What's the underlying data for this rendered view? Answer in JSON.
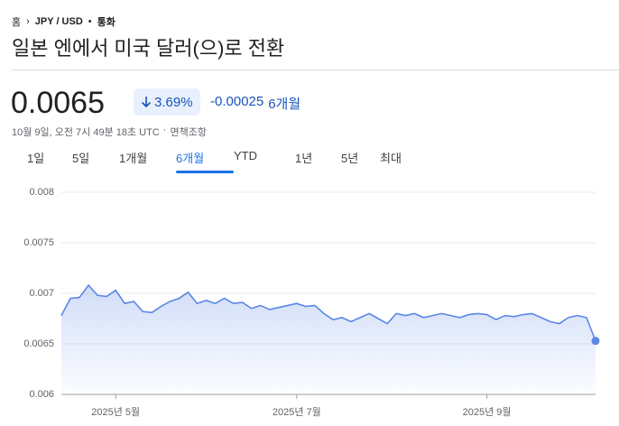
{
  "breadcrumb": {
    "home": "홈",
    "pair": "JPY / USD",
    "kind": "통화"
  },
  "title": "일본 엔에서 미국 달러(으)로 전환",
  "quote": {
    "price": "0.0065",
    "change_percent": "3.69%",
    "change": "-0.00025",
    "period": "6개월",
    "timestamp": "10월 9일, 오전 7시 49분 18초 UTC",
    "disclaimer": "면책조항"
  },
  "tabs": [
    "1일",
    "5일",
    "1개월",
    "6개월",
    "YTD",
    "1년",
    "5년",
    "최대"
  ],
  "chart_data": {
    "type": "line",
    "color": "#5a86e6",
    "categories": [
      null,
      null,
      null,
      null,
      null,
      null,
      "2025년 5월",
      null,
      null,
      null,
      null,
      null,
      null,
      null,
      null,
      null,
      null,
      null,
      null,
      null,
      null,
      null,
      null,
      null,
      null,
      null,
      "2025년 7월",
      null,
      null,
      null,
      null,
      null,
      null,
      null,
      null,
      null,
      null,
      null,
      null,
      null,
      null,
      null,
      null,
      null,
      null,
      null,
      null,
      "2025년 9월",
      null,
      null,
      null,
      null,
      null,
      null,
      null,
      null,
      null,
      null,
      null,
      null
    ],
    "values": [
      0.00678,
      0.00695,
      0.00696,
      0.00708,
      0.00698,
      0.00697,
      0.00703,
      0.0069,
      0.00692,
      0.00682,
      0.00681,
      0.00687,
      0.00692,
      0.00695,
      0.00701,
      0.0069,
      0.00693,
      0.0069,
      0.00695,
      0.0069,
      0.00691,
      0.00685,
      0.00688,
      0.00684,
      0.00686,
      0.00688,
      0.0069,
      0.00687,
      0.00688,
      0.0068,
      0.00674,
      0.00676,
      0.00672,
      0.00676,
      0.0068,
      0.00675,
      0.0067,
      0.0068,
      0.00678,
      0.0068,
      0.00676,
      0.00678,
      0.0068,
      0.00678,
      0.00676,
      0.00679,
      0.0068,
      0.00679,
      0.00674,
      0.00678,
      0.00677,
      0.00679,
      0.0068,
      0.00676,
      0.00672,
      0.0067,
      0.00676,
      0.00678,
      0.00676,
      0.00653
    ],
    "ylim": [
      0.006,
      0.008
    ],
    "yticks": [
      0.006,
      0.0065,
      0.007,
      0.0075,
      0.008
    ],
    "grid": true
  }
}
